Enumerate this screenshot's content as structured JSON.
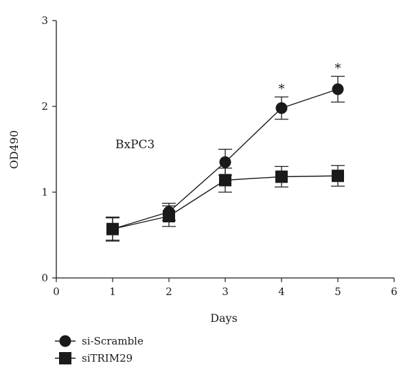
{
  "chart_data": {
    "type": "line",
    "xlabel": "Days",
    "ylabel": "OD490",
    "annotation": "BxPC3",
    "xlim": [
      0,
      6
    ],
    "ylim": [
      0,
      3
    ],
    "x_ticks": [
      0,
      1,
      2,
      3,
      4,
      5,
      6
    ],
    "y_ticks": [
      0,
      1,
      2,
      3
    ],
    "grid": false,
    "legend_position": "bottom-left",
    "significance_marker": "*",
    "series": [
      {
        "name": "si-Scramble",
        "marker": "circle",
        "color": "#1a1a1a",
        "x": [
          1,
          2,
          3,
          4,
          5
        ],
        "y": [
          0.57,
          0.77,
          1.35,
          1.98,
          2.2
        ],
        "error": [
          0.13,
          0.1,
          0.15,
          0.13,
          0.15
        ],
        "significant": [
          false,
          false,
          false,
          true,
          true
        ]
      },
      {
        "name": "siTRIM29",
        "marker": "square",
        "color": "#1a1a1a",
        "x": [
          1,
          2,
          3,
          4,
          5
        ],
        "y": [
          0.57,
          0.72,
          1.14,
          1.18,
          1.19
        ],
        "error": [
          0.14,
          0.12,
          0.14,
          0.12,
          0.12
        ],
        "significant": [
          false,
          false,
          false,
          false,
          false
        ]
      }
    ]
  }
}
